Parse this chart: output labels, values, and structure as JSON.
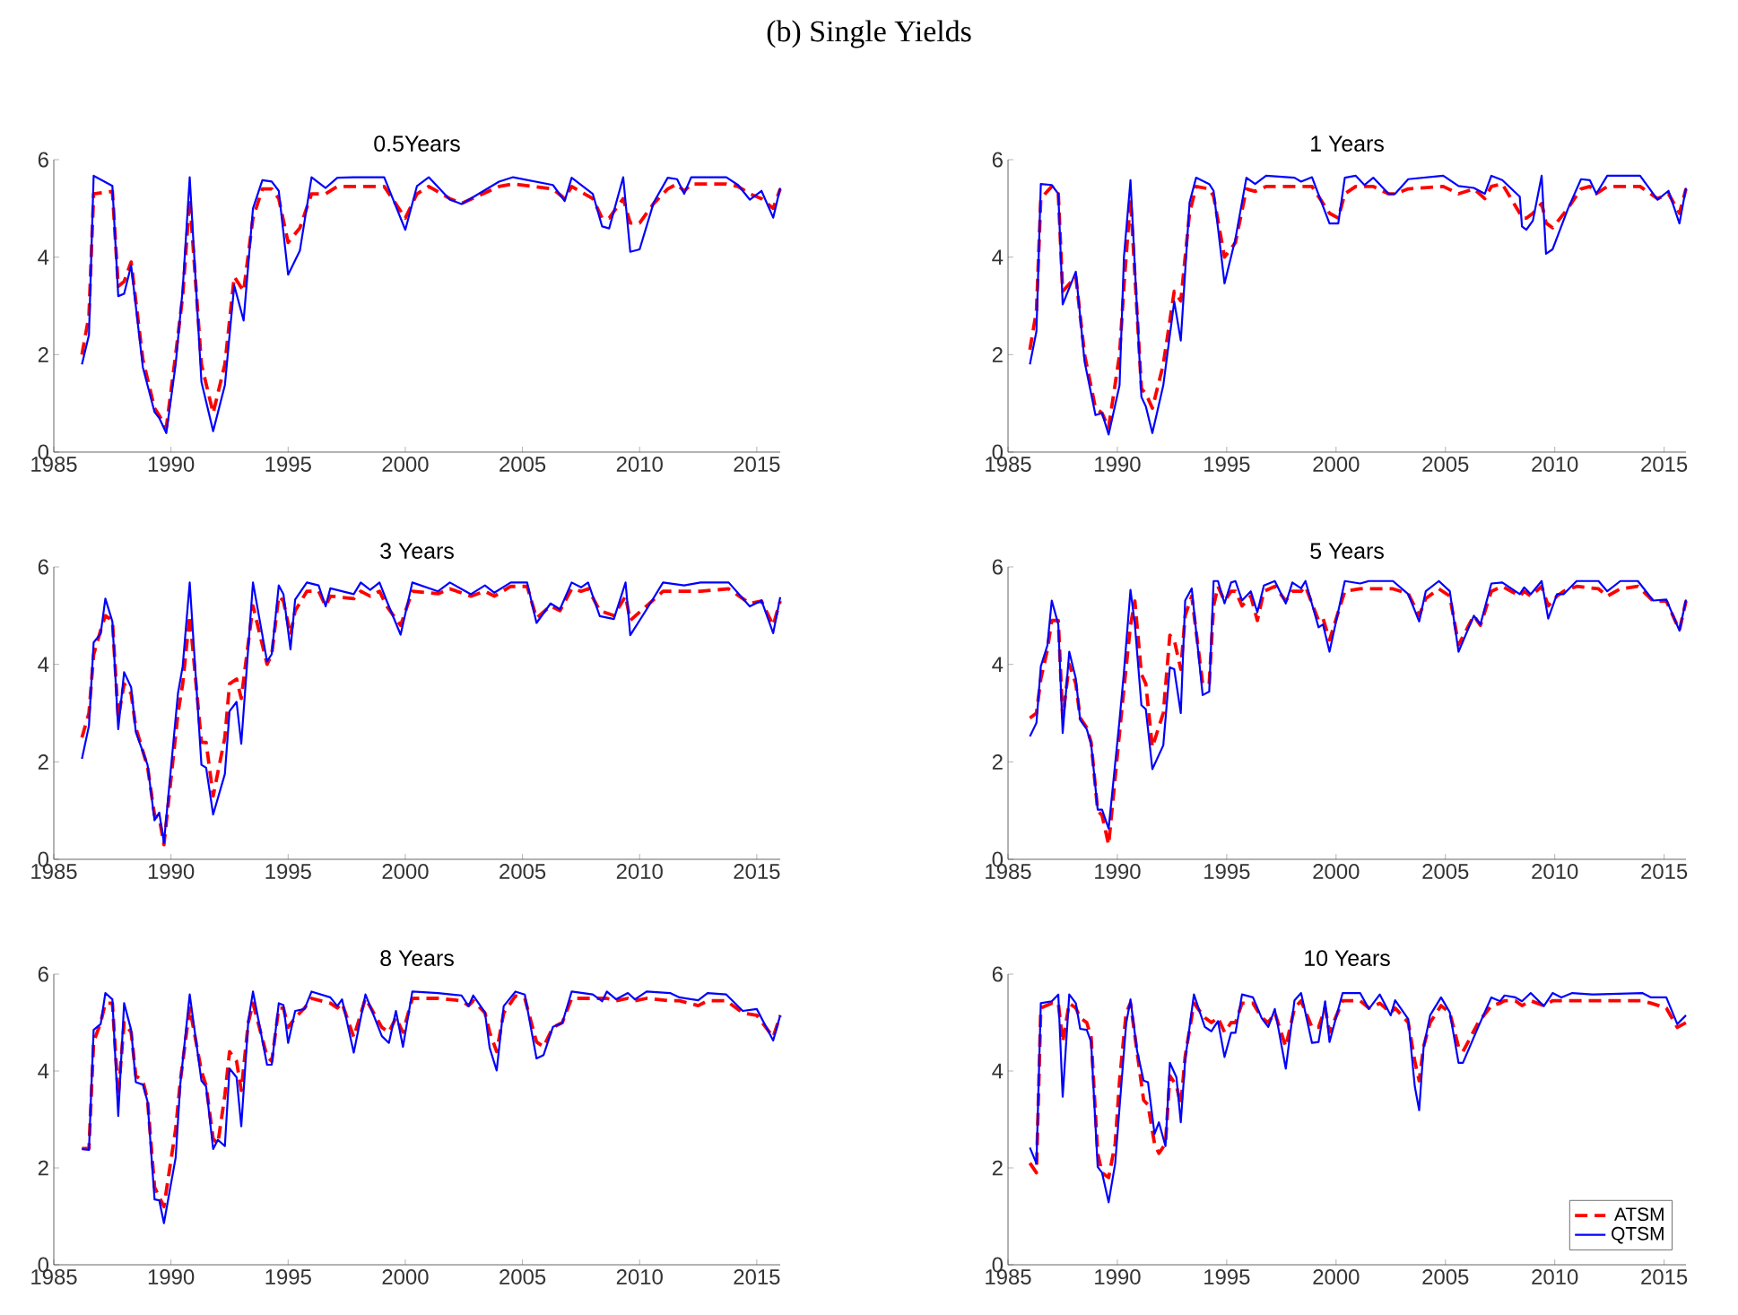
{
  "chart_data": [
    {
      "type": "line",
      "title": "0.5Years",
      "annotations": [
        "(b) Single Yields"
      ],
      "xlim": [
        1985,
        2016
      ],
      "ylim": [
        0,
        6
      ],
      "xticks": [
        1985,
        1990,
        1995,
        2000,
        2005,
        2010,
        2015
      ],
      "yticks": [
        0,
        2,
        4,
        6
      ],
      "x": [
        1986.2,
        1986.5,
        1986.7,
        1987.5,
        1987.75,
        1988.0,
        1988.3,
        1988.8,
        1989.3,
        1989.5,
        1989.8,
        1990.2,
        1990.5,
        1990.8,
        1991.3,
        1991.8,
        1992.3,
        1992.7,
        1993.1,
        1993.5,
        1993.9,
        1994.3,
        1994.6,
        1995.0,
        1995.5,
        1996.0,
        1996.6,
        1997.1,
        1997.8,
        1999.1,
        2000.0,
        2000.5,
        2001.0,
        2001.9,
        2002.4,
        2004.0,
        2004.6,
        2006.3,
        2006.8,
        2007.1,
        2008.0,
        2008.4,
        2008.7,
        2009.3,
        2009.6,
        2010.0,
        2010.6,
        2011.2,
        2011.6,
        2011.9,
        2012.2,
        2013.7,
        2014.2,
        2014.7,
        2015.2,
        2015.7,
        2016.0
      ],
      "series": [
        {
          "color": "#ff0000",
          "line_style": "dashed",
          "values": [
            2.0,
            2.8,
            5.3,
            5.35,
            3.4,
            3.5,
            3.9,
            1.9,
            0.9,
            0.75,
            0.5,
            2.0,
            3.2,
            5.2,
            1.8,
            0.8,
            1.8,
            3.6,
            3.3,
            4.8,
            5.4,
            5.4,
            5.2,
            4.3,
            4.6,
            5.3,
            5.3,
            5.45,
            5.45,
            5.45,
            4.8,
            5.3,
            5.45,
            5.2,
            5.1,
            5.45,
            5.5,
            5.4,
            5.2,
            5.45,
            5.2,
            4.8,
            4.8,
            5.2,
            4.7,
            4.7,
            5.1,
            5.4,
            5.5,
            5.35,
            5.5,
            5.5,
            5.45,
            5.3,
            5.2,
            5.0,
            5.4
          ]
        },
        {
          "color": "#0000ff",
          "line_style": "solid",
          "values": [
            1.8,
            2.4,
            5.67,
            5.46,
            3.2,
            3.25,
            3.83,
            1.74,
            0.82,
            0.7,
            0.39,
            1.8,
            3.34,
            5.64,
            1.44,
            0.43,
            1.37,
            3.42,
            2.7,
            5.0,
            5.58,
            5.55,
            5.36,
            3.64,
            4.13,
            5.64,
            5.42,
            5.63,
            5.64,
            5.64,
            4.56,
            5.46,
            5.64,
            5.18,
            5.09,
            5.55,
            5.64,
            5.48,
            5.15,
            5.63,
            5.3,
            4.63,
            4.59,
            5.64,
            4.11,
            4.16,
            5.12,
            5.63,
            5.6,
            5.3,
            5.64,
            5.64,
            5.48,
            5.18,
            5.36,
            4.81,
            5.42
          ]
        }
      ]
    },
    {
      "type": "line",
      "title": "1 Years",
      "xlim": [
        1985,
        2016
      ],
      "ylim": [
        0,
        6
      ],
      "xticks": [
        1985,
        1990,
        1995,
        2000,
        2005,
        2010,
        2015
      ],
      "yticks": [
        0,
        2,
        4,
        6
      ],
      "x": [
        1986.0,
        1986.3,
        1986.5,
        1987.0,
        1987.3,
        1987.5,
        1988.1,
        1988.5,
        1989.0,
        1989.3,
        1989.6,
        1990.1,
        1990.3,
        1990.6,
        1991.1,
        1991.3,
        1991.6,
        1992.1,
        1992.6,
        1992.9,
        1993.3,
        1993.6,
        1994.2,
        1994.4,
        1994.9,
        1995.4,
        1995.9,
        1996.3,
        1996.8,
        1998.1,
        1998.4,
        1998.9,
        1999.7,
        2000.1,
        2000.4,
        2000.9,
        2001.3,
        2001.7,
        2002.4,
        2002.7,
        2003.3,
        2004.9,
        2005.6,
        2006.3,
        2006.8,
        2007.1,
        2007.6,
        2008.4,
        2008.5,
        2008.7,
        2009.0,
        2009.4,
        2009.6,
        2009.9,
        2010.6,
        2011.2,
        2011.6,
        2011.9,
        2012.4,
        2013.9,
        2014.7,
        2015.2,
        2015.7,
        2016.0
      ],
      "series": [
        {
          "color": "#ff0000",
          "line_style": "dashed",
          "values": [
            2.1,
            2.9,
            5.2,
            5.45,
            5.3,
            3.3,
            3.6,
            2.0,
            0.9,
            0.8,
            0.5,
            2.0,
            3.4,
            5.2,
            1.3,
            1.2,
            0.9,
            1.8,
            3.3,
            3.1,
            4.9,
            5.45,
            5.4,
            5.25,
            4.0,
            4.3,
            5.4,
            5.35,
            5.45,
            5.45,
            5.45,
            5.45,
            4.9,
            4.8,
            5.3,
            5.45,
            5.45,
            5.45,
            5.3,
            5.3,
            5.4,
            5.45,
            5.3,
            5.4,
            5.2,
            5.45,
            5.5,
            4.9,
            4.8,
            4.8,
            4.9,
            5.1,
            4.7,
            4.6,
            5.0,
            5.4,
            5.45,
            5.3,
            5.45,
            5.45,
            5.2,
            5.3,
            4.9,
            5.4
          ]
        },
        {
          "color": "#0000ff",
          "line_style": "solid",
          "values": [
            1.8,
            2.48,
            5.5,
            5.48,
            5.3,
            3.03,
            3.7,
            1.86,
            0.76,
            0.8,
            0.36,
            1.37,
            4.0,
            5.58,
            1.13,
            0.94,
            0.39,
            1.37,
            3.09,
            2.29,
            5.12,
            5.63,
            5.5,
            5.36,
            3.46,
            4.38,
            5.63,
            5.5,
            5.67,
            5.63,
            5.55,
            5.64,
            4.69,
            4.69,
            5.63,
            5.67,
            5.48,
            5.63,
            5.3,
            5.3,
            5.6,
            5.67,
            5.46,
            5.42,
            5.3,
            5.67,
            5.58,
            5.24,
            4.63,
            4.56,
            4.75,
            5.67,
            4.07,
            4.16,
            4.99,
            5.6,
            5.58,
            5.3,
            5.67,
            5.67,
            5.18,
            5.36,
            4.69,
            5.42
          ]
        }
      ]
    },
    {
      "type": "line",
      "title": "3 Years",
      "xlim": [
        1985,
        2016
      ],
      "ylim": [
        0,
        6
      ],
      "xticks": [
        1985,
        1990,
        1995,
        2000,
        2005,
        2010,
        2015
      ],
      "yticks": [
        0,
        2,
        4,
        6
      ],
      "x": [
        1986.2,
        1986.5,
        1986.7,
        1987.0,
        1987.2,
        1987.5,
        1987.75,
        1988.0,
        1988.3,
        1988.5,
        1989.0,
        1989.3,
        1989.5,
        1989.7,
        1990.3,
        1990.5,
        1990.8,
        1991.3,
        1991.5,
        1991.8,
        1992.3,
        1992.5,
        1992.8,
        1993.0,
        1993.5,
        1994.1,
        1994.3,
        1994.6,
        1994.8,
        1995.1,
        1995.3,
        1995.8,
        1996.3,
        1996.6,
        1996.8,
        1997.8,
        1998.1,
        1998.5,
        1998.9,
        1999.2,
        1999.8,
        2000.3,
        2001.4,
        2001.9,
        2002.8,
        2003.4,
        2003.8,
        2004.5,
        2005.2,
        2005.6,
        2006.2,
        2006.6,
        2007.1,
        2007.5,
        2007.8,
        2008.3,
        2008.9,
        2009.4,
        2009.6,
        2010.3,
        2011.0,
        2011.9,
        2012.6,
        2013.8,
        2014.7,
        2015.2,
        2015.7,
        2016.0
      ],
      "series": [
        {
          "color": "#ff0000",
          "line_style": "dashed",
          "values": [
            2.5,
            3.0,
            4.2,
            4.7,
            5.0,
            4.9,
            2.9,
            3.6,
            3.4,
            2.7,
            1.9,
            0.9,
            0.85,
            0.3,
            3.0,
            3.6,
            5.0,
            2.4,
            2.4,
            1.3,
            2.5,
            3.6,
            3.7,
            3.3,
            5.2,
            4.0,
            4.2,
            5.4,
            5.3,
            4.6,
            5.1,
            5.5,
            5.5,
            5.2,
            5.4,
            5.35,
            5.5,
            5.4,
            5.5,
            5.2,
            4.8,
            5.5,
            5.45,
            5.55,
            5.4,
            5.5,
            5.4,
            5.6,
            5.6,
            4.95,
            5.2,
            5.1,
            5.55,
            5.5,
            5.55,
            5.1,
            5.0,
            5.4,
            4.9,
            5.2,
            5.5,
            5.5,
            5.5,
            5.55,
            5.25,
            5.3,
            4.8,
            5.3
          ]
        },
        {
          "color": "#0000ff",
          "line_style": "solid",
          "values": [
            2.06,
            2.74,
            4.45,
            4.63,
            5.35,
            4.88,
            2.67,
            3.84,
            3.53,
            2.61,
            1.94,
            0.8,
            0.96,
            0.34,
            3.41,
            3.96,
            5.68,
            1.94,
            1.88,
            0.92,
            1.75,
            3.04,
            3.23,
            2.37,
            5.68,
            4.06,
            4.21,
            5.62,
            5.44,
            4.31,
            5.33,
            5.68,
            5.62,
            5.19,
            5.56,
            5.44,
            5.68,
            5.53,
            5.68,
            5.31,
            4.61,
            5.68,
            5.5,
            5.68,
            5.44,
            5.62,
            5.47,
            5.68,
            5.68,
            4.85,
            5.25,
            5.13,
            5.68,
            5.58,
            5.68,
            4.99,
            4.93,
            5.68,
            4.6,
            5.13,
            5.68,
            5.62,
            5.68,
            5.68,
            5.19,
            5.31,
            4.64,
            5.38
          ]
        }
      ]
    },
    {
      "type": "line",
      "title": "5 Years",
      "xlim": [
        1985,
        2016
      ],
      "ylim": [
        0,
        6
      ],
      "xticks": [
        1985,
        1990,
        1995,
        2000,
        2005,
        2010,
        2015
      ],
      "yticks": [
        0,
        2,
        4,
        6
      ],
      "x": [
        1986.0,
        1986.3,
        1986.5,
        1986.8,
        1987.0,
        1987.3,
        1987.5,
        1987.8,
        1988.1,
        1988.3,
        1988.6,
        1988.8,
        1989.1,
        1989.3,
        1989.6,
        1990.1,
        1990.3,
        1990.6,
        1990.8,
        1991.1,
        1991.3,
        1991.6,
        1992.1,
        1992.4,
        1992.6,
        1992.9,
        1993.1,
        1993.4,
        1993.9,
        1994.2,
        1994.4,
        1994.6,
        1994.9,
        1995.2,
        1995.4,
        1995.7,
        1996.1,
        1996.4,
        1996.7,
        1997.2,
        1997.7,
        1998.0,
        1998.4,
        1998.6,
        1999.2,
        1999.4,
        1999.7,
        2000.4,
        2001.1,
        2001.5,
        2002.6,
        2003.3,
        2003.8,
        2004.1,
        2004.7,
        2005.2,
        2005.6,
        2006.3,
        2006.6,
        2007.1,
        2007.6,
        2008.0,
        2008.4,
        2008.6,
        2008.9,
        2009.4,
        2009.7,
        2010.1,
        2010.4,
        2011.0,
        2012.0,
        2012.4,
        2013.0,
        2013.8,
        2014.5,
        2015.1,
        2015.7,
        2016.0
      ],
      "series": [
        {
          "color": "#ff0000",
          "line_style": "dashed",
          "values": [
            2.9,
            3.0,
            3.7,
            4.3,
            4.9,
            4.9,
            2.9,
            4.0,
            3.6,
            2.9,
            2.7,
            2.4,
            1.0,
            0.9,
            0.3,
            2.6,
            3.5,
            4.8,
            5.3,
            3.8,
            3.6,
            2.3,
            3.0,
            4.6,
            4.5,
            3.9,
            5.0,
            5.4,
            3.6,
            3.6,
            5.2,
            5.6,
            5.3,
            5.5,
            5.5,
            5.2,
            5.4,
            4.9,
            5.5,
            5.6,
            5.3,
            5.5,
            5.5,
            5.6,
            4.9,
            4.95,
            4.5,
            5.5,
            5.55,
            5.55,
            5.55,
            5.45,
            5.0,
            5.35,
            5.55,
            5.4,
            4.4,
            5.0,
            4.8,
            5.5,
            5.6,
            5.5,
            5.4,
            5.5,
            5.4,
            5.6,
            5.2,
            5.4,
            5.5,
            5.6,
            5.55,
            5.4,
            5.55,
            5.6,
            5.3,
            5.3,
            4.7,
            5.3
          ]
        },
        {
          "color": "#0000ff",
          "line_style": "solid",
          "values": [
            2.52,
            2.8,
            3.96,
            4.39,
            5.31,
            4.82,
            2.59,
            4.26,
            3.71,
            2.86,
            2.67,
            2.37,
            1.02,
            1.02,
            0.63,
            2.86,
            3.84,
            5.53,
            4.82,
            3.16,
            3.08,
            1.85,
            2.34,
            3.94,
            3.9,
            3.0,
            5.31,
            5.56,
            3.37,
            3.44,
            5.71,
            5.71,
            5.25,
            5.68,
            5.71,
            5.31,
            5.5,
            5.07,
            5.62,
            5.71,
            5.25,
            5.68,
            5.56,
            5.71,
            4.76,
            4.82,
            4.26,
            5.71,
            5.66,
            5.71,
            5.71,
            5.44,
            4.88,
            5.5,
            5.71,
            5.5,
            4.26,
            5.0,
            4.82,
            5.66,
            5.68,
            5.56,
            5.44,
            5.58,
            5.44,
            5.71,
            4.94,
            5.44,
            5.44,
            5.71,
            5.71,
            5.5,
            5.71,
            5.71,
            5.31,
            5.33,
            4.69,
            5.33
          ]
        }
      ]
    },
    {
      "type": "line",
      "title": "8 Years",
      "xlim": [
        1985,
        2016
      ],
      "ylim": [
        0,
        6
      ],
      "xticks": [
        1985,
        1990,
        1995,
        2000,
        2005,
        2010,
        2015
      ],
      "yticks": [
        0,
        2,
        4,
        6
      ],
      "x": [
        1986.2,
        1986.5,
        1986.7,
        1987.0,
        1987.2,
        1987.5,
        1987.75,
        1988.0,
        1988.3,
        1988.5,
        1988.8,
        1989.0,
        1989.3,
        1989.5,
        1989.7,
        1990.2,
        1990.4,
        1990.8,
        1991.3,
        1991.5,
        1991.8,
        1992.0,
        1992.3,
        1992.5,
        1992.8,
        1993.0,
        1993.3,
        1993.5,
        1994.1,
        1994.3,
        1994.6,
        1994.8,
        1995.0,
        1995.3,
        1995.7,
        1996.0,
        1996.8,
        1997.1,
        1997.3,
        1997.8,
        1998.3,
        1999.0,
        1999.3,
        1999.6,
        1999.9,
        2000.3,
        2001.4,
        2002.4,
        2002.7,
        2002.9,
        2003.4,
        2003.6,
        2003.9,
        2004.2,
        2004.7,
        2005.1,
        2005.6,
        2005.9,
        2006.3,
        2006.7,
        2007.1,
        2008.0,
        2008.4,
        2008.6,
        2009.0,
        2009.5,
        2009.8,
        2010.3,
        2011.3,
        2011.7,
        2012.5,
        2012.9,
        2013.7,
        2014.4,
        2015.0,
        2015.7,
        2016.0
      ],
      "series": [
        {
          "color": "#ff0000",
          "line_style": "dashed",
          "values": [
            2.4,
            2.4,
            4.6,
            5.0,
            5.4,
            5.4,
            3.5,
            5.0,
            4.8,
            3.9,
            3.8,
            3.4,
            1.6,
            1.4,
            1.2,
            2.8,
            3.8,
            5.3,
            4.0,
            3.7,
            2.6,
            2.5,
            3.5,
            4.4,
            4.2,
            3.6,
            5.0,
            5.4,
            4.3,
            4.2,
            5.3,
            5.3,
            4.9,
            5.1,
            5.3,
            5.5,
            5.4,
            5.3,
            5.4,
            4.7,
            5.5,
            4.9,
            4.8,
            5.1,
            4.8,
            5.5,
            5.5,
            5.45,
            5.35,
            5.45,
            5.2,
            4.8,
            4.4,
            5.2,
            5.55,
            5.5,
            4.6,
            4.5,
            4.9,
            5.0,
            5.5,
            5.5,
            5.5,
            5.5,
            5.45,
            5.5,
            5.45,
            5.5,
            5.45,
            5.45,
            5.35,
            5.45,
            5.45,
            5.2,
            5.15,
            4.7,
            5.15
          ]
        },
        {
          "color": "#0000ff",
          "line_style": "solid",
          "values": [
            2.39,
            2.37,
            4.85,
            4.97,
            5.61,
            5.48,
            3.07,
            5.4,
            4.85,
            3.77,
            3.72,
            3.37,
            1.35,
            1.33,
            0.86,
            2.21,
            3.74,
            5.58,
            3.8,
            3.68,
            2.39,
            2.58,
            2.45,
            4.05,
            3.87,
            2.86,
            5.03,
            5.64,
            4.13,
            4.13,
            5.4,
            5.36,
            4.58,
            5.24,
            5.28,
            5.64,
            5.52,
            5.34,
            5.48,
            4.38,
            5.58,
            4.72,
            4.58,
            5.24,
            4.5,
            5.64,
            5.61,
            5.56,
            5.34,
            5.56,
            5.21,
            4.48,
            4.01,
            5.34,
            5.64,
            5.58,
            4.26,
            4.33,
            4.91,
            4.99,
            5.64,
            5.58,
            5.44,
            5.64,
            5.48,
            5.61,
            5.48,
            5.64,
            5.61,
            5.52,
            5.46,
            5.61,
            5.58,
            5.24,
            5.28,
            4.63,
            5.15
          ]
        }
      ]
    },
    {
      "type": "line",
      "title": "10 Years",
      "legend": "bottom right",
      "xlim": [
        1985,
        2016
      ],
      "ylim": [
        0,
        6
      ],
      "xticks": [
        1985,
        1990,
        1995,
        2000,
        2005,
        2010,
        2015
      ],
      "yticks": [
        0,
        2,
        4,
        6
      ],
      "x": [
        1986.0,
        1986.3,
        1986.5,
        1987.0,
        1987.3,
        1987.5,
        1987.8,
        1988.1,
        1988.3,
        1988.6,
        1988.8,
        1989.1,
        1989.3,
        1989.6,
        1989.9,
        1990.1,
        1990.4,
        1990.6,
        1990.9,
        1991.2,
        1991.4,
        1991.7,
        1991.9,
        1992.2,
        1992.4,
        1992.7,
        1992.9,
        1993.1,
        1993.5,
        1994.0,
        1994.3,
        1994.6,
        1994.9,
        1995.2,
        1995.4,
        1995.7,
        1996.2,
        1996.6,
        1996.9,
        1997.2,
        1997.7,
        1998.1,
        1998.4,
        1998.9,
        1999.2,
        1999.5,
        1999.7,
        2000.3,
        2001.1,
        2001.5,
        2002.0,
        2002.5,
        2002.7,
        2003.3,
        2003.6,
        2003.8,
        2004.0,
        2004.3,
        2004.8,
        2005.2,
        2005.6,
        2005.8,
        2006.5,
        2007.1,
        2007.5,
        2007.7,
        2008.2,
        2008.5,
        2008.9,
        2009.5,
        2009.9,
        2010.3,
        2010.8,
        2011.7,
        2014.0,
        2014.4,
        2015.1,
        2015.6,
        2016.0
      ],
      "series": [
        {
          "name": "ATSM",
          "color": "#ff0000",
          "line_style": "dashed",
          "values": [
            2.1,
            1.9,
            5.3,
            5.4,
            5.4,
            4.6,
            5.4,
            5.3,
            5.1,
            5.0,
            4.7,
            2.3,
            1.9,
            1.8,
            2.5,
            3.8,
            5.2,
            5.4,
            4.4,
            3.4,
            3.3,
            2.5,
            2.3,
            2.5,
            3.9,
            3.7,
            3.3,
            4.3,
            5.4,
            5.1,
            5.0,
            5.1,
            4.8,
            5.0,
            5.0,
            5.4,
            5.4,
            5.1,
            5.0,
            5.2,
            4.5,
            5.3,
            5.45,
            4.9,
            4.9,
            5.3,
            4.8,
            5.45,
            5.45,
            5.3,
            5.4,
            5.2,
            5.3,
            5.0,
            4.2,
            3.8,
            4.5,
            5.0,
            5.35,
            5.2,
            4.5,
            4.4,
            5.0,
            5.35,
            5.4,
            5.45,
            5.45,
            5.35,
            5.45,
            5.35,
            5.45,
            5.45,
            5.45,
            5.45,
            5.45,
            5.4,
            5.3,
            4.9,
            5.0
          ]
        },
        {
          "name": "QTSM",
          "color": "#0000ff",
          "line_style": "solid",
          "values": [
            2.42,
            2.09,
            5.4,
            5.44,
            5.58,
            3.47,
            5.58,
            5.4,
            4.87,
            4.85,
            4.6,
            2.02,
            1.9,
            1.29,
            2.09,
            3.25,
            4.97,
            5.48,
            4.42,
            3.8,
            3.77,
            2.7,
            2.94,
            2.45,
            4.17,
            3.87,
            2.94,
            4.23,
            5.58,
            4.91,
            4.82,
            5.03,
            4.29,
            4.79,
            4.79,
            5.58,
            5.52,
            5.09,
            4.91,
            5.28,
            4.05,
            5.46,
            5.61,
            4.58,
            4.6,
            5.44,
            4.6,
            5.61,
            5.61,
            5.28,
            5.58,
            5.15,
            5.46,
            5.07,
            3.68,
            3.19,
            4.48,
            5.15,
            5.52,
            5.21,
            4.17,
            4.17,
            4.91,
            5.52,
            5.44,
            5.56,
            5.52,
            5.44,
            5.61,
            5.34,
            5.61,
            5.52,
            5.61,
            5.58,
            5.61,
            5.52,
            5.52,
            4.97,
            5.15
          ]
        }
      ]
    }
  ]
}
